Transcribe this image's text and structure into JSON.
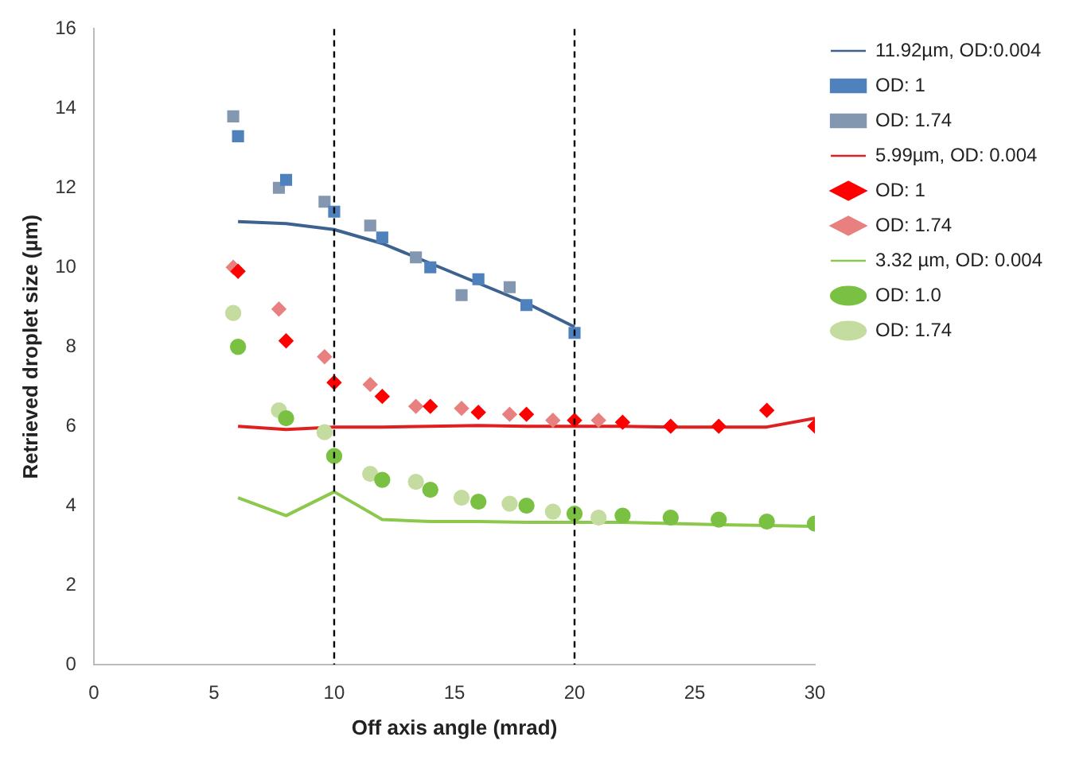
{
  "chart_data": {
    "type": "scatter",
    "xlabel": "Off axis angle (mrad)",
    "ylabel": "Retrieved droplet size (µm)",
    "xlim": [
      0,
      30
    ],
    "xticks": [
      0,
      5,
      10,
      15,
      20,
      25,
      30
    ],
    "ylim": [
      0,
      16
    ],
    "yticks": [
      0,
      2,
      4,
      6,
      8,
      10,
      12,
      14,
      16
    ],
    "grid": false,
    "legend": "right",
    "ref_lines": [
      {
        "axis": "x",
        "value": 10,
        "color": "#000000",
        "line_style": "dashed"
      },
      {
        "axis": "x",
        "value": 20,
        "color": "#000000",
        "line_style": "dashed"
      }
    ],
    "series": [
      {
        "name": "11.92µm, OD:0.004",
        "type": "line",
        "color": "#3d6290",
        "marker": "none",
        "x": [
          6,
          8,
          10,
          12,
          14,
          16,
          18,
          20
        ],
        "values": [
          11.15,
          11.1,
          10.95,
          10.6,
          10.1,
          9.6,
          9.1,
          8.5
        ]
      },
      {
        "name": "OD: 1",
        "type": "scatter",
        "color": "#4f81bd",
        "marker": "square",
        "x": [
          6,
          8,
          10,
          12,
          14,
          16,
          18,
          20
        ],
        "values": [
          13.3,
          12.2,
          11.4,
          10.75,
          10.0,
          9.7,
          9.05,
          8.35
        ]
      },
      {
        "name": "OD: 1.74",
        "type": "scatter",
        "color": "#8497b0",
        "marker": "square",
        "x": [
          5.8,
          7.7,
          9.6,
          11.5,
          13.4,
          15.3,
          17.3
        ],
        "values": [
          13.8,
          12.0,
          11.65,
          11.05,
          10.25,
          9.3,
          9.5
        ]
      },
      {
        "name": "5.99µm, OD: 0.004",
        "type": "line",
        "color": "#e02020",
        "marker": "none",
        "x": [
          6,
          8,
          10,
          12,
          14,
          16,
          18,
          20,
          22,
          24,
          26,
          28,
          30
        ],
        "values": [
          6.0,
          5.92,
          5.98,
          5.98,
          6.0,
          6.02,
          6.0,
          6.0,
          6.0,
          5.98,
          5.98,
          5.98,
          6.2
        ]
      },
      {
        "name": "OD: 1",
        "type": "scatter",
        "color": "#ff0000",
        "marker": "diamond",
        "x": [
          6,
          8,
          10,
          12,
          14,
          16,
          18,
          20,
          22,
          24,
          26,
          28,
          30
        ],
        "values": [
          9.9,
          8.15,
          7.1,
          6.75,
          6.5,
          6.35,
          6.3,
          6.15,
          6.1,
          6.0,
          6.0,
          6.4,
          6.0
        ]
      },
      {
        "name": "OD: 1.74",
        "type": "scatter",
        "color": "#e88080",
        "marker": "diamond",
        "x": [
          5.8,
          7.7,
          9.6,
          11.5,
          13.4,
          15.3,
          17.3,
          19.1,
          21
        ],
        "values": [
          10.0,
          8.95,
          7.75,
          7.05,
          6.5,
          6.45,
          6.3,
          6.15,
          6.15
        ]
      },
      {
        "name": "3.32 µm, OD: 0.004",
        "type": "line",
        "color": "#8cc84b",
        "marker": "none",
        "x": [
          6,
          8,
          10,
          12,
          14,
          16,
          18,
          20,
          22,
          24,
          26,
          28,
          30
        ],
        "values": [
          4.2,
          3.75,
          4.35,
          3.65,
          3.6,
          3.6,
          3.58,
          3.58,
          3.58,
          3.55,
          3.52,
          3.5,
          3.48
        ]
      },
      {
        "name": "OD: 1.0",
        "type": "scatter",
        "color": "#7ac143",
        "marker": "circle",
        "x": [
          6,
          8,
          10,
          12,
          14,
          16,
          18,
          20,
          22,
          24,
          26,
          28,
          30
        ],
        "values": [
          8.0,
          6.2,
          5.25,
          4.65,
          4.4,
          4.1,
          4.0,
          3.8,
          3.75,
          3.7,
          3.65,
          3.6,
          3.55
        ]
      },
      {
        "name": "OD: 1.74",
        "type": "scatter",
        "color": "#c5dca0",
        "marker": "circle",
        "x": [
          5.8,
          7.7,
          9.6,
          11.5,
          13.4,
          15.3,
          17.3,
          19.1,
          21
        ],
        "values": [
          8.85,
          6.4,
          5.85,
          4.8,
          4.6,
          4.2,
          4.05,
          3.85,
          3.7
        ]
      }
    ]
  }
}
